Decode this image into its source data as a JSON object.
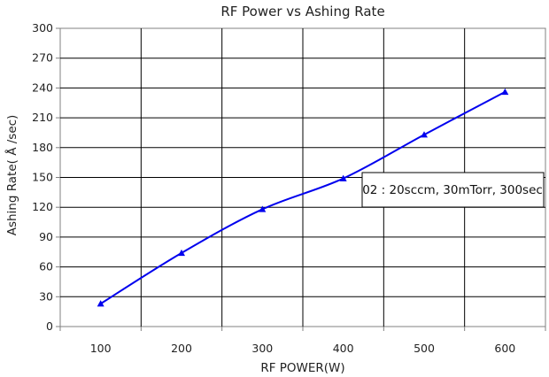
{
  "chart_data": {
    "type": "line",
    "title": "RF Power vs Ashing Rate",
    "xlabel": "RF POWER(W)",
    "ylabel": "Ashing Rate( Å /sec)",
    "x": [
      100,
      200,
      300,
      400,
      500,
      600
    ],
    "x_ticks": [
      "100",
      "200",
      "300",
      "400",
      "500",
      "600"
    ],
    "xlim": [
      50,
      650
    ],
    "y_ticks": [
      "0",
      "30",
      "60",
      "90",
      "120",
      "150",
      "180",
      "210",
      "240",
      "270",
      "300"
    ],
    "ylim": [
      0,
      300
    ],
    "grid": true,
    "series": [
      {
        "values": [
          23,
          74,
          118,
          149,
          193,
          236
        ],
        "color": "#0000ee",
        "marker": "triangle"
      }
    ],
    "annotation": "02 : 20sccm, 30mTorr, 300sec"
  }
}
